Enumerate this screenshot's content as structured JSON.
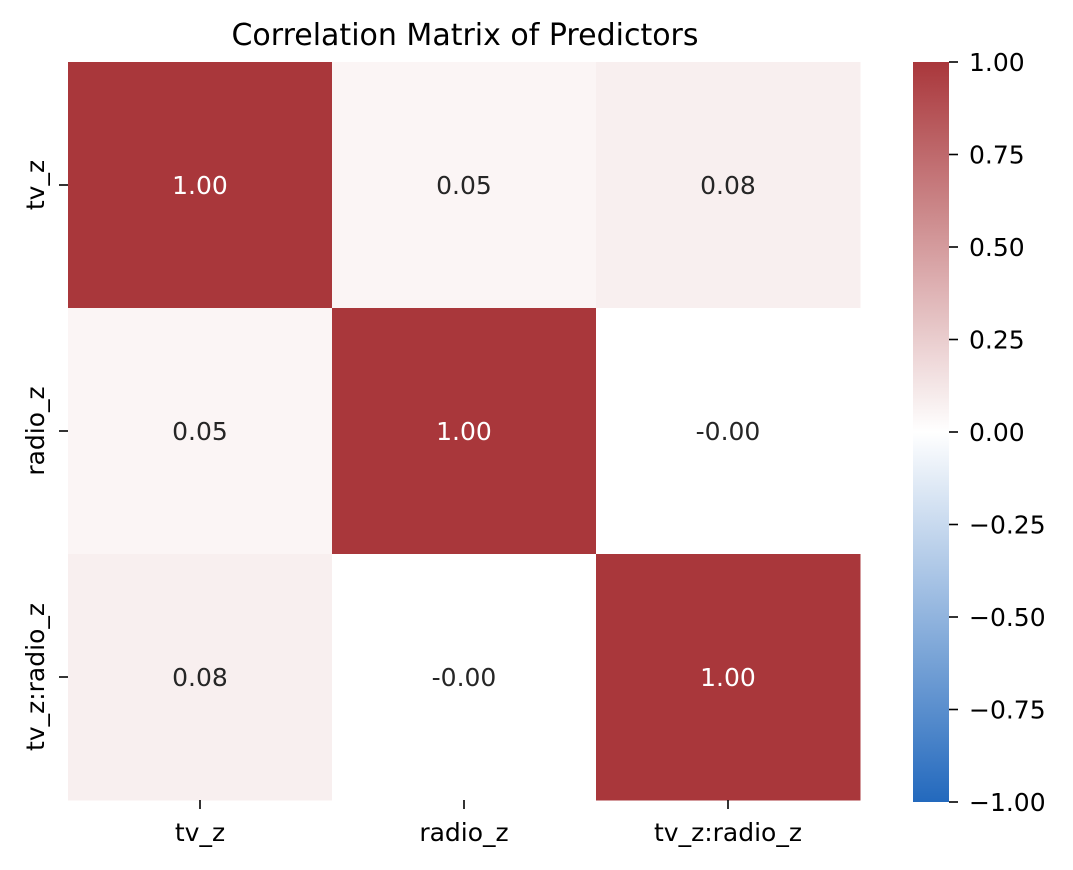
{
  "chart_data": {
    "type": "heatmap",
    "title": "Correlation Matrix of Predictors",
    "xlabel": "",
    "ylabel": "",
    "x_categories": [
      "tv_z",
      "radio_z",
      "tv_z:radio_z"
    ],
    "y_categories": [
      "tv_z",
      "radio_z",
      "tv_z:radio_z"
    ],
    "values": [
      [
        1.0,
        0.05,
        0.08
      ],
      [
        0.05,
        1.0,
        -0.0
      ],
      [
        0.08,
        -0.0,
        1.0
      ]
    ],
    "value_labels": [
      [
        "1.00",
        "0.05",
        "0.08"
      ],
      [
        "0.05",
        "1.00",
        "-0.00"
      ],
      [
        "0.08",
        "-0.00",
        "1.00"
      ]
    ],
    "colorbar": {
      "vmin": -1.0,
      "vmax": 1.0,
      "ticks": [
        1.0,
        0.75,
        0.5,
        0.25,
        0.0,
        -0.25,
        -0.5,
        -0.75,
        -1.0
      ],
      "tick_labels": [
        "1.00",
        "0.75",
        "0.50",
        "0.25",
        "0.00",
        "−0.25",
        "−0.50",
        "−0.75",
        "−1.00"
      ]
    },
    "colormap": "vlag",
    "colors": {
      "negative_end": "#2369bd",
      "mid": "#ffffff",
      "positive_end": "#a9373b"
    },
    "grid": false
  }
}
